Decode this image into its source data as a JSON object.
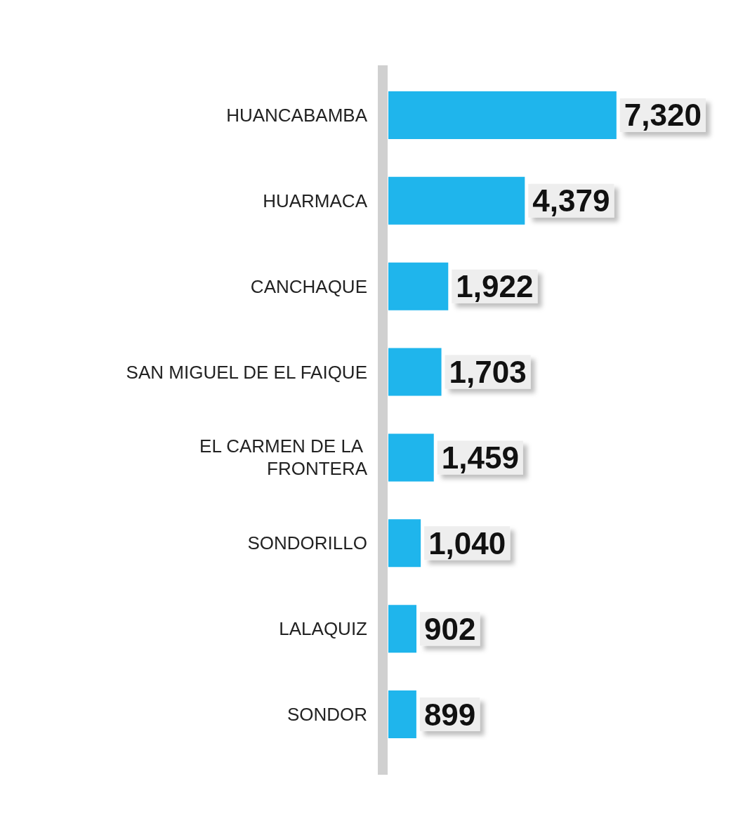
{
  "chart_data": {
    "type": "bar",
    "orientation": "horizontal",
    "categories": [
      "HUANCABAMBA",
      "HUARMACA",
      "CANCHAQUE",
      "SAN MIGUEL DE EL FAIQUE",
      "EL CARMEN DE LA FRONTERA",
      "SONDORILLO",
      "LALAQUIZ",
      "SONDOR"
    ],
    "values": [
      7320,
      4379,
      1922,
      1703,
      1459,
      1040,
      902,
      899
    ],
    "value_labels": [
      "7,320",
      "4,379",
      "1,922",
      "1,703",
      "1,459",
      "1,040",
      "902",
      "899"
    ],
    "color": "#1fb5ec"
  }
}
